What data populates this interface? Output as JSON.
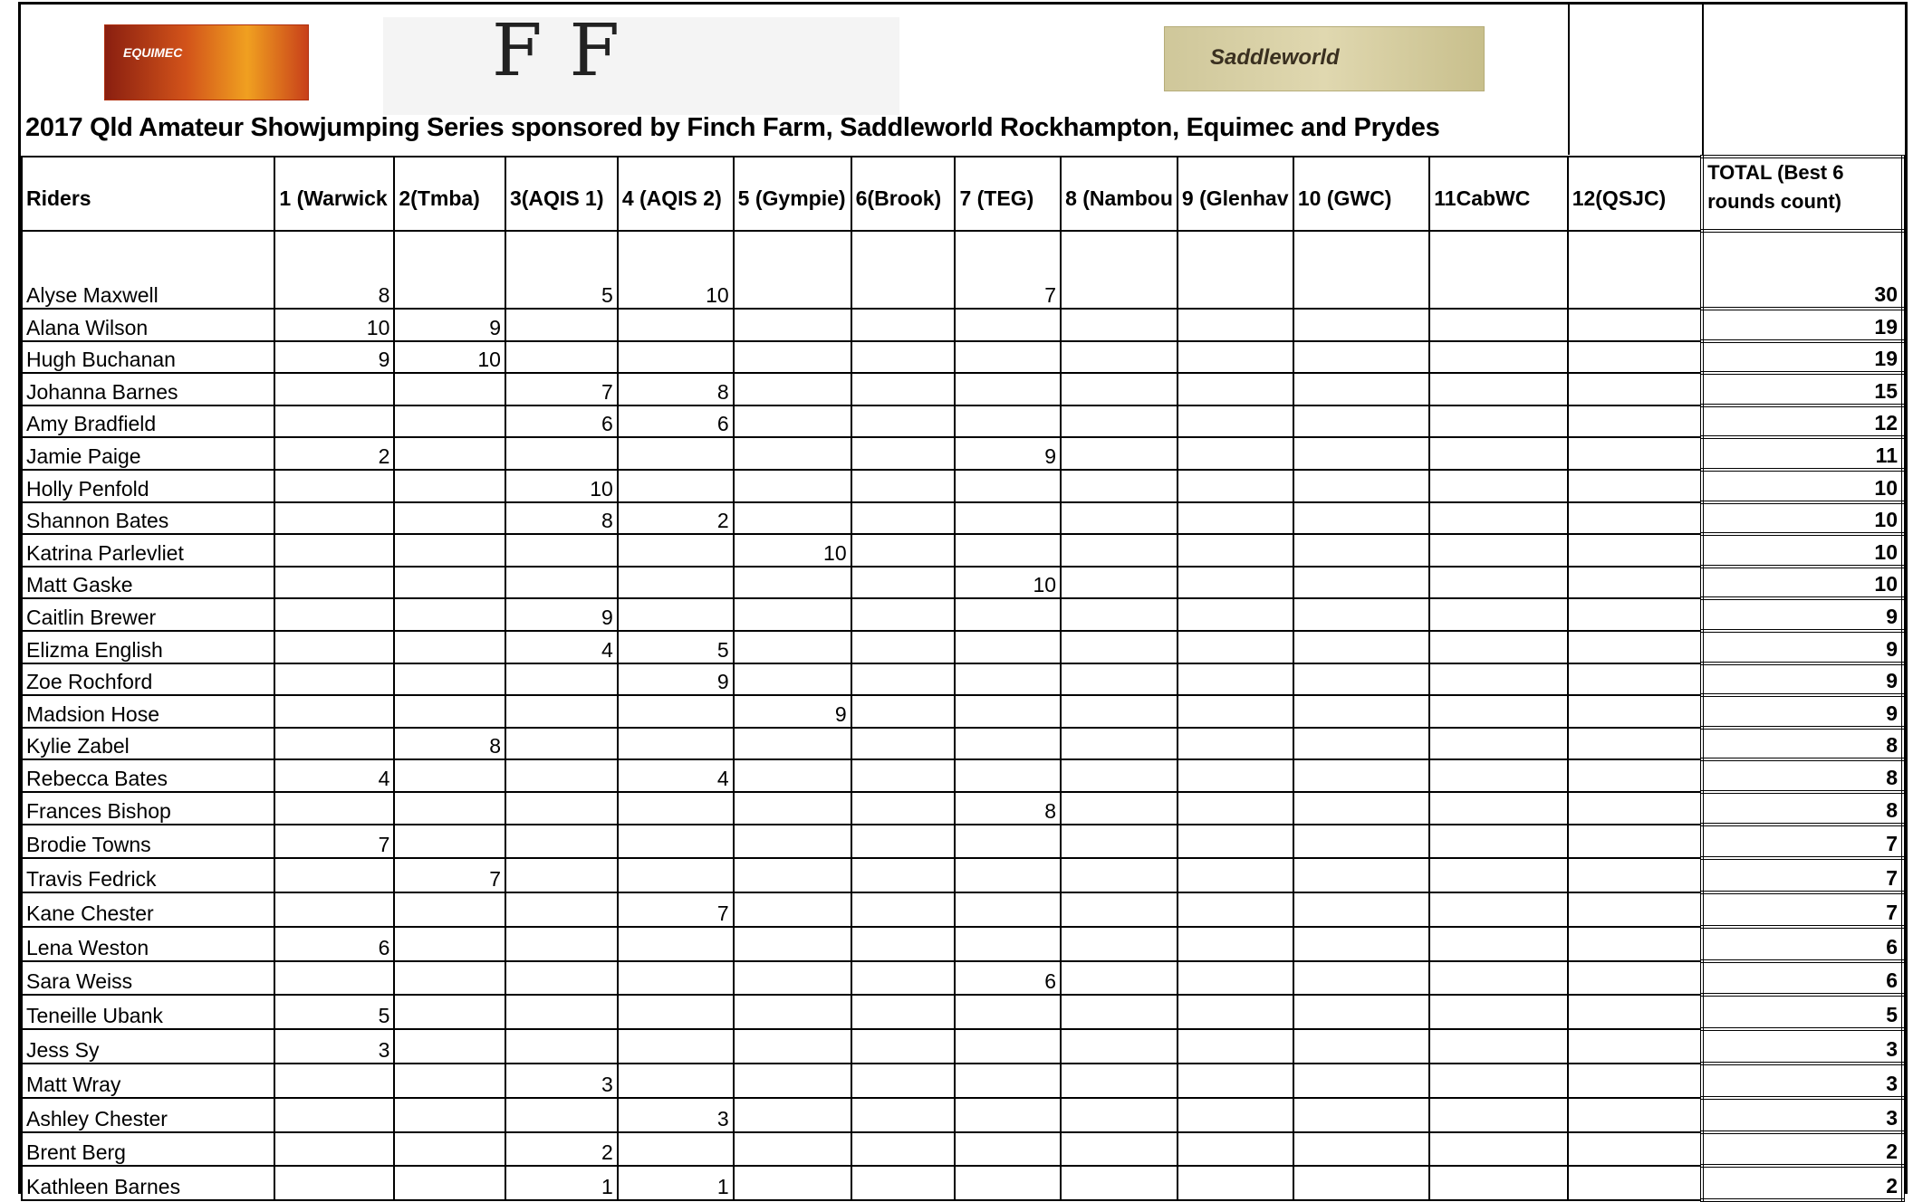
{
  "title": "2017 Qld Amateur Showjumping Series sponsored by Finch Farm, Saddleworld Rockhampton, Equimec and Prydes",
  "logos": {
    "equimec": "EQUIMEC",
    "finch_farm": "FF",
    "saddleworld": "Saddleworld"
  },
  "columns": [
    "Riders",
    "1 (Warwick",
    "2(Tmba)",
    "3(AQIS 1)",
    "4 (AQIS 2)",
    "5 (Gympie)",
    "6(Brook)",
    "7 (TEG)",
    "8 (Nambou",
    "9 (Glenhav",
    "10 (GWC)",
    "11CabWC",
    "12(QSJC)",
    "TOTAL (Best 6 rounds count)"
  ],
  "rows": [
    {
      "name": "Alyse Maxwell",
      "scores": [
        "8",
        "",
        "5",
        "10",
        "",
        "",
        "7",
        "",
        "",
        "",
        "",
        ""
      ],
      "total": "30"
    },
    {
      "name": "Alana Wilson",
      "scores": [
        "10",
        "9",
        "",
        "",
        "",
        "",
        "",
        "",
        "",
        "",
        "",
        ""
      ],
      "total": "19"
    },
    {
      "name": "Hugh Buchanan",
      "scores": [
        "9",
        "10",
        "",
        "",
        "",
        "",
        "",
        "",
        "",
        "",
        "",
        ""
      ],
      "total": "19"
    },
    {
      "name": "Johanna Barnes",
      "scores": [
        "",
        "",
        "7",
        "8",
        "",
        "",
        "",
        "",
        "",
        "",
        "",
        ""
      ],
      "total": "15"
    },
    {
      "name": "Amy Bradfield",
      "scores": [
        "",
        "",
        "6",
        "6",
        "",
        "",
        "",
        "",
        "",
        "",
        "",
        ""
      ],
      "total": "12"
    },
    {
      "name": "Jamie Paige",
      "scores": [
        "2",
        "",
        "",
        "",
        "",
        "",
        "9",
        "",
        "",
        "",
        "",
        ""
      ],
      "total": "11"
    },
    {
      "name": "Holly Penfold",
      "scores": [
        "",
        "",
        "10",
        "",
        "",
        "",
        "",
        "",
        "",
        "",
        "",
        ""
      ],
      "total": "10"
    },
    {
      "name": "Shannon Bates",
      "scores": [
        "",
        "",
        "8",
        "2",
        "",
        "",
        "",
        "",
        "",
        "",
        "",
        ""
      ],
      "total": "10"
    },
    {
      "name": "Katrina Parlevliet",
      "scores": [
        "",
        "",
        "",
        "",
        "10",
        "",
        "",
        "",
        "",
        "",
        "",
        ""
      ],
      "total": "10"
    },
    {
      "name": "Matt Gaske",
      "scores": [
        "",
        "",
        "",
        "",
        "",
        "",
        "10",
        "",
        "",
        "",
        "",
        ""
      ],
      "total": "10"
    },
    {
      "name": "Caitlin Brewer",
      "scores": [
        "",
        "",
        "9",
        "",
        "",
        "",
        "",
        "",
        "",
        "",
        "",
        ""
      ],
      "total": "9"
    },
    {
      "name": "Elizma English",
      "scores": [
        "",
        "",
        "4",
        "5",
        "",
        "",
        "",
        "",
        "",
        "",
        "",
        ""
      ],
      "total": "9"
    },
    {
      "name": "Zoe Rochford",
      "scores": [
        "",
        "",
        "",
        "9",
        "",
        "",
        "",
        "",
        "",
        "",
        "",
        ""
      ],
      "total": "9"
    },
    {
      "name": "Madsion Hose",
      "scores": [
        "",
        "",
        "",
        "",
        "9",
        "",
        "",
        "",
        "",
        "",
        "",
        ""
      ],
      "total": "9"
    },
    {
      "name": "Kylie Zabel",
      "scores": [
        "",
        "8",
        "",
        "",
        "",
        "",
        "",
        "",
        "",
        "",
        "",
        ""
      ],
      "total": "8"
    },
    {
      "name": "Rebecca Bates",
      "scores": [
        "4",
        "",
        "",
        "4",
        "",
        "",
        "",
        "",
        "",
        "",
        "",
        ""
      ],
      "total": "8"
    },
    {
      "name": "Frances Bishop",
      "scores": [
        "",
        "",
        "",
        "",
        "",
        "",
        "8",
        "",
        "",
        "",
        "",
        ""
      ],
      "total": "8"
    },
    {
      "name": "Brodie Towns",
      "scores": [
        "7",
        "",
        "",
        "",
        "",
        "",
        "",
        "",
        "",
        "",
        "",
        ""
      ],
      "total": "7"
    },
    {
      "name": "Travis Fedrick",
      "scores": [
        "",
        "7",
        "",
        "",
        "",
        "",
        "",
        "",
        "",
        "",
        "",
        ""
      ],
      "total": "7"
    },
    {
      "name": "Kane Chester",
      "scores": [
        "",
        "",
        "",
        "7",
        "",
        "",
        "",
        "",
        "",
        "",
        "",
        ""
      ],
      "total": "7"
    },
    {
      "name": "Lena Weston",
      "scores": [
        "6",
        "",
        "",
        "",
        "",
        "",
        "",
        "",
        "",
        "",
        "",
        ""
      ],
      "total": "6"
    },
    {
      "name": "Sara Weiss",
      "scores": [
        "",
        "",
        "",
        "",
        "",
        "",
        "6",
        "",
        "",
        "",
        "",
        ""
      ],
      "total": "6"
    },
    {
      "name": "Teneille Ubank",
      "scores": [
        "5",
        "",
        "",
        "",
        "",
        "",
        "",
        "",
        "",
        "",
        "",
        ""
      ],
      "total": "5"
    },
    {
      "name": "Jess Sy",
      "scores": [
        "3",
        "",
        "",
        "",
        "",
        "",
        "",
        "",
        "",
        "",
        "",
        ""
      ],
      "total": "3"
    },
    {
      "name": "Matt Wray",
      "scores": [
        "",
        "",
        "3",
        "",
        "",
        "",
        "",
        "",
        "",
        "",
        "",
        ""
      ],
      "total": "3"
    },
    {
      "name": "Ashley Chester",
      "scores": [
        "",
        "",
        "",
        "3",
        "",
        "",
        "",
        "",
        "",
        "",
        "",
        ""
      ],
      "total": "3"
    },
    {
      "name": "Brent Berg",
      "scores": [
        "",
        "",
        "2",
        "",
        "",
        "",
        "",
        "",
        "",
        "",
        "",
        ""
      ],
      "total": "2"
    },
    {
      "name": "Kathleen Barnes",
      "scores": [
        "",
        "",
        "1",
        "1",
        "",
        "",
        "",
        "",
        "",
        "",
        "",
        ""
      ],
      "total": "2"
    }
  ]
}
